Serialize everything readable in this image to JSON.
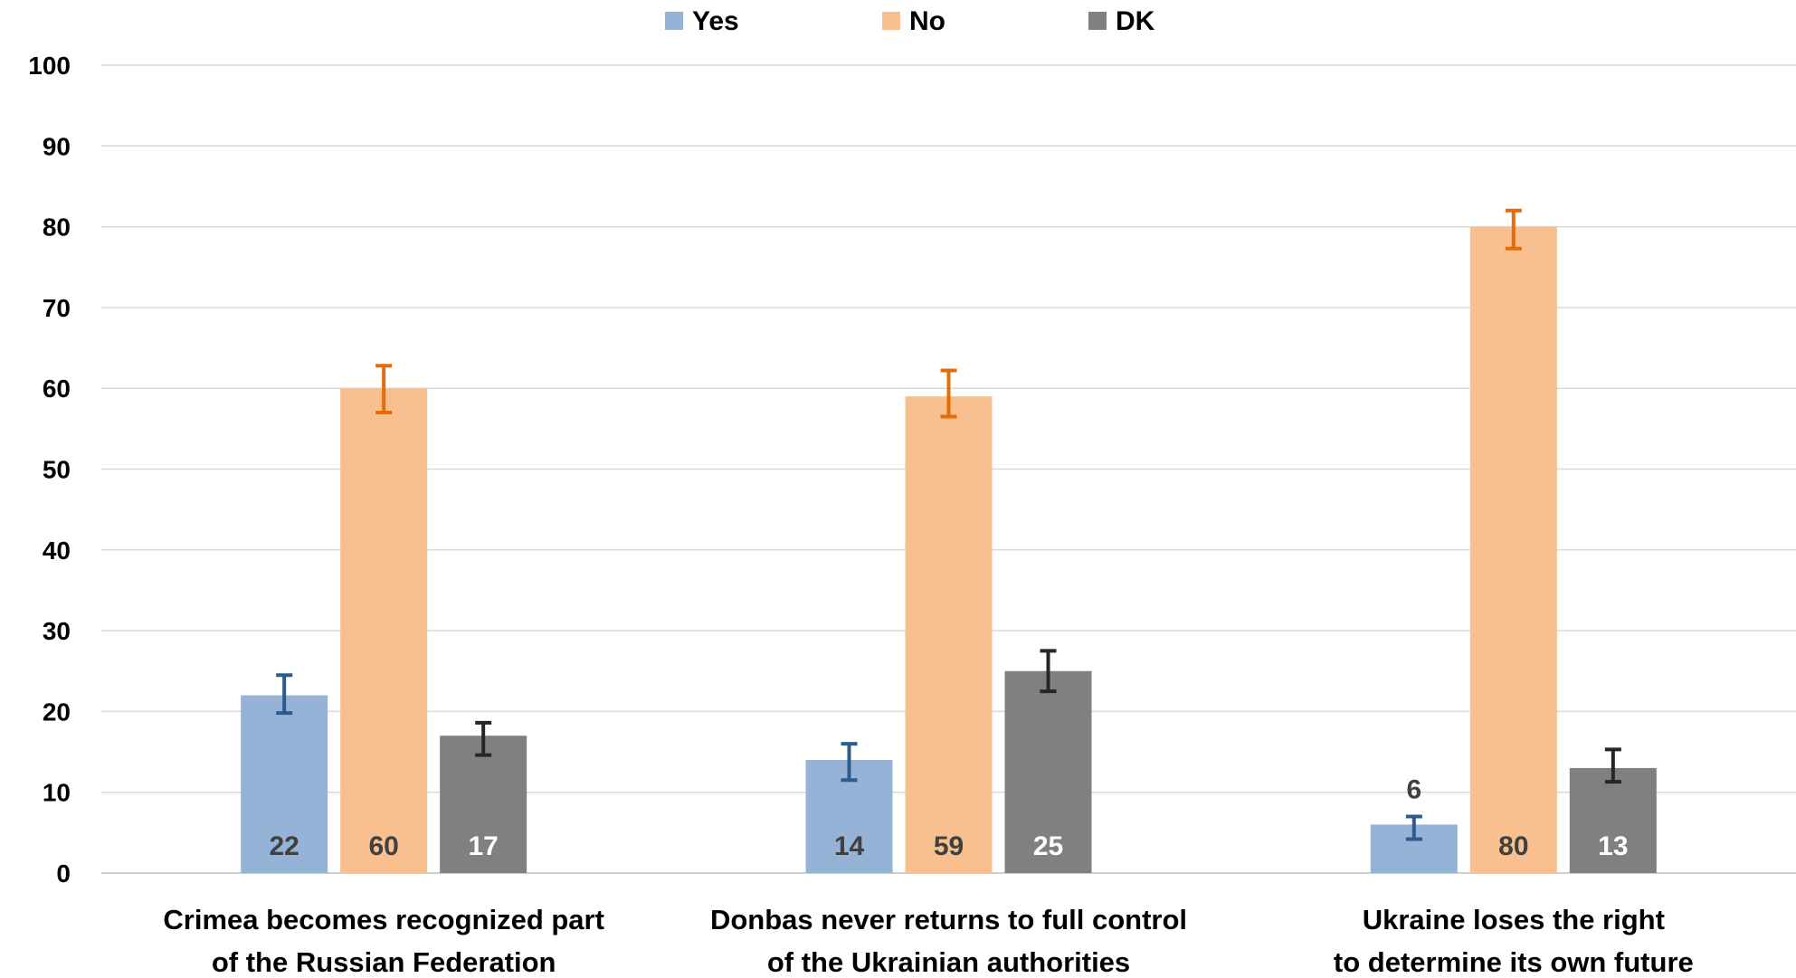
{
  "chart_data": {
    "type": "bar",
    "ylim": [
      0,
      100
    ],
    "yticks": [
      0,
      10,
      20,
      30,
      40,
      50,
      60,
      70,
      80,
      90,
      100
    ],
    "grid": true,
    "legend_position": "top-center",
    "categories": [
      [
        "Crimea becomes recognized part",
        "of the Russian Federation"
      ],
      [
        "Donbas never returns to full control",
        "of the Ukrainian authorities"
      ],
      [
        "Ukraine loses the right",
        "to determine its own future"
      ]
    ],
    "series": [
      {
        "name": "Yes",
        "color": "#95b3d7",
        "error_color": "#2e5b8e",
        "label_color": "#404040",
        "values": [
          22,
          14,
          6
        ],
        "error_low": [
          19.8,
          11.5,
          4.2
        ],
        "error_high": [
          24.5,
          16.0,
          7.0
        ],
        "labels": [
          "22",
          "14",
          "6"
        ]
      },
      {
        "name": "No",
        "color": "#f9c08f",
        "error_color": "#e46c0a",
        "label_color": "#404040",
        "values": [
          60,
          59,
          80
        ],
        "error_low": [
          57.0,
          56.5,
          77.3
        ],
        "error_high": [
          62.8,
          62.2,
          82.0
        ],
        "labels": [
          "60",
          "59",
          "80"
        ]
      },
      {
        "name": "DK",
        "color": "#808080",
        "error_color": "#262626",
        "label_color": "#ffffff",
        "values": [
          17,
          25,
          13
        ],
        "error_low": [
          14.6,
          22.5,
          11.3
        ],
        "error_high": [
          18.6,
          27.5,
          15.3
        ],
        "labels": [
          "17",
          "25",
          "13"
        ]
      }
    ]
  }
}
